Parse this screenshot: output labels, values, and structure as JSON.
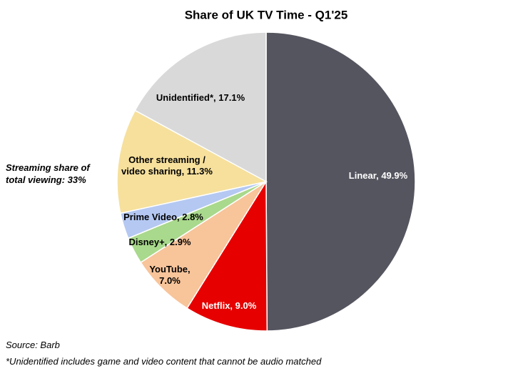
{
  "chart_data": {
    "type": "pie",
    "title": "Share of UK TV Time - Q1'25",
    "categories": [
      "Linear",
      "Netflix",
      "YouTube",
      "Disney+",
      "Prime Video",
      "Other streaming / video sharing",
      "Unidentified*"
    ],
    "values": [
      49.9,
      9.0,
      7.0,
      2.9,
      2.8,
      11.3,
      17.1
    ],
    "value_labels": [
      "Linear, 49.9%",
      "Netflix, 9.0%",
      "YouTube, 7.0%",
      "Disney+, 2.9%",
      "Prime Video, 2.8%",
      "Other streaming / video sharing, 11.3%",
      "Unidentified*, 17.1%"
    ],
    "colors": [
      "#55555f",
      "#e60000",
      "#f8c49a",
      "#a9d98c",
      "#b4c8f2",
      "#f6e09c",
      "#d9d9d9"
    ],
    "annotations": [
      "Streaming share of total viewing: 33%"
    ],
    "source": "Source: Barb",
    "footnote": "*Unidentified includes game and video content that cannot be audio matched"
  }
}
